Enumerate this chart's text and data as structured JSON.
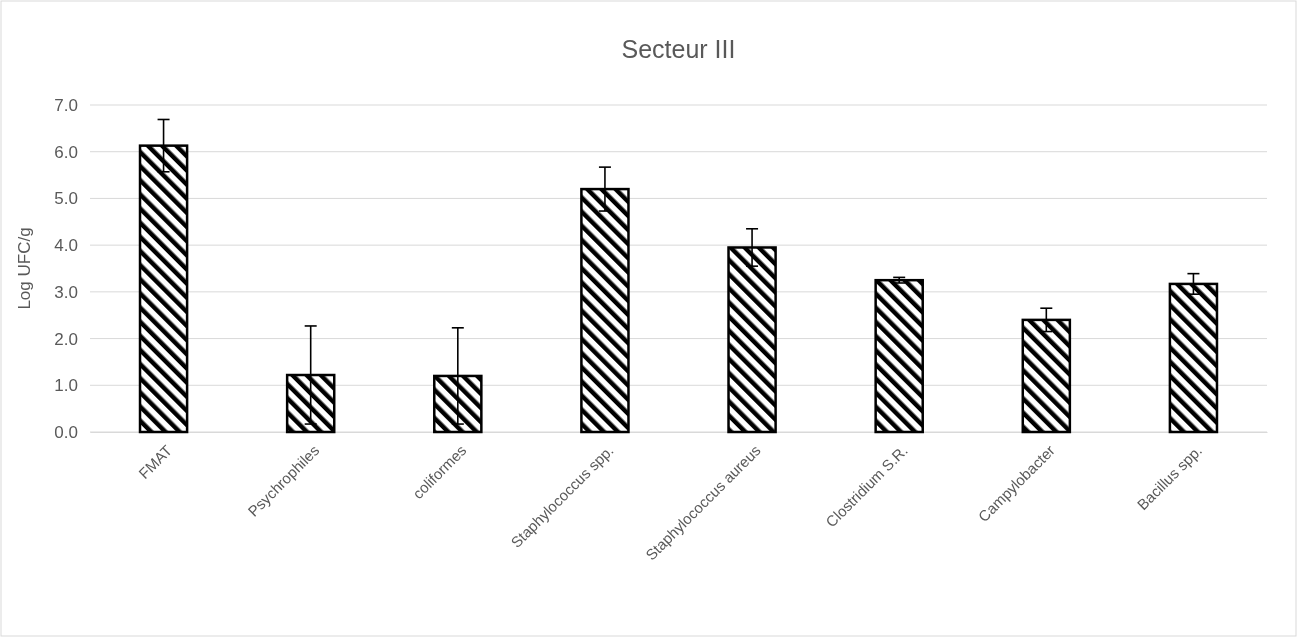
{
  "chart_data": {
    "type": "bar",
    "title": "Secteur III",
    "ylabel": "Log UFC/g",
    "categories": [
      "FMAT",
      "Psychrophiles",
      "coliformes",
      "Staphylococcus spp.",
      "Staphylococcus aureus",
      "Clostridium S.R.",
      "Campylobacter",
      "Bacillus spp."
    ],
    "values": [
      6.13,
      1.22,
      1.2,
      5.2,
      3.95,
      3.25,
      2.4,
      3.17
    ],
    "errors": [
      0.56,
      1.05,
      1.03,
      0.47,
      0.4,
      0.06,
      0.25,
      0.22
    ],
    "color": "#000000",
    "ylim": [
      0,
      7
    ],
    "yticks": [
      {
        "value": 0,
        "label": "0.0"
      },
      {
        "value": 1,
        "label": "1.0"
      },
      {
        "value": 2,
        "label": "2.0"
      },
      {
        "value": 3,
        "label": "3.0"
      },
      {
        "value": 4,
        "label": "4.0"
      },
      {
        "value": 5,
        "label": "5.0"
      },
      {
        "value": 6,
        "label": "6.0"
      },
      {
        "value": 7,
        "label": "7.0"
      }
    ],
    "grid": "y"
  }
}
